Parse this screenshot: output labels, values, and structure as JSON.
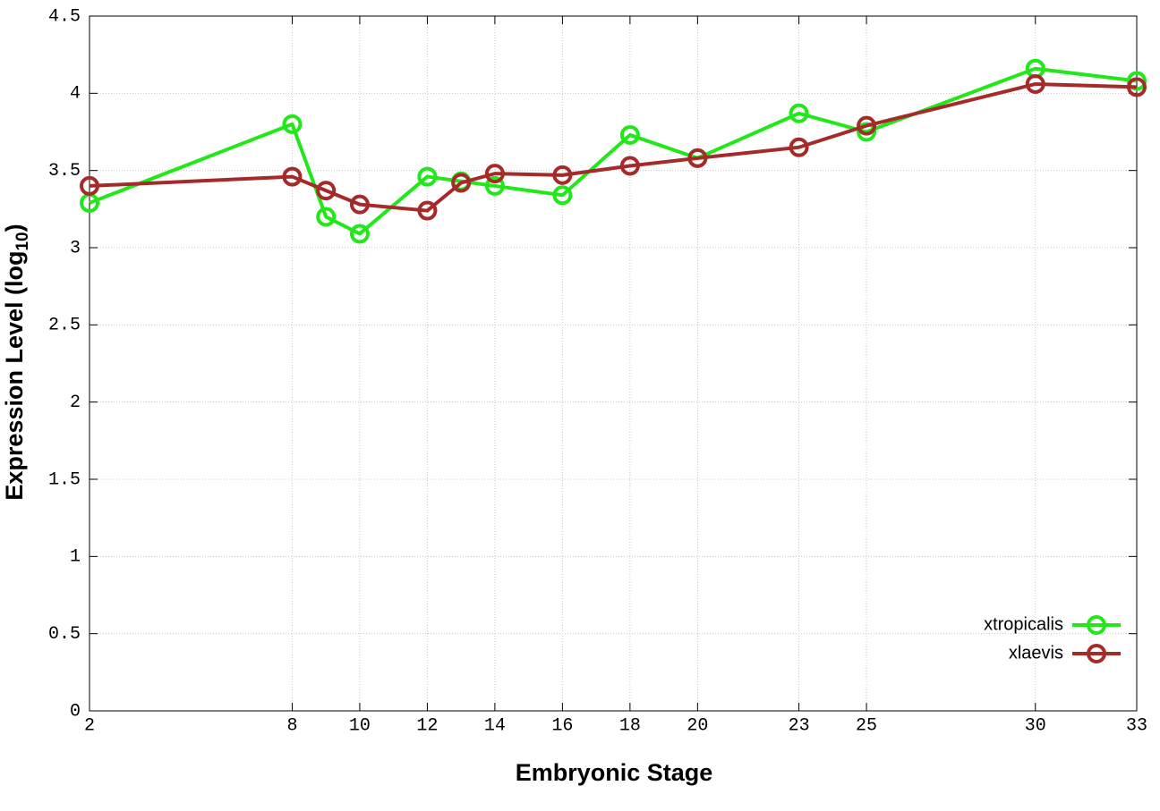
{
  "chart_data": {
    "type": "line",
    "xlabel": "Embryonic Stage",
    "ylabel": [
      "Expression Level (log",
      "10",
      ")"
    ],
    "x": [
      2,
      8,
      9,
      10,
      12,
      13,
      14,
      16,
      18,
      20,
      23,
      25,
      30,
      33
    ],
    "series": [
      {
        "name": "xtropicalis",
        "color": "#22e81a",
        "values": [
          3.29,
          3.8,
          3.2,
          3.09,
          3.46,
          3.43,
          3.4,
          3.34,
          3.73,
          3.58,
          3.87,
          3.75,
          4.16,
          4.08
        ]
      },
      {
        "name": "xlaevis",
        "color": "#a52a2a",
        "values": [
          3.4,
          3.46,
          3.37,
          3.28,
          3.24,
          3.42,
          3.48,
          3.47,
          3.53,
          3.58,
          3.65,
          3.79,
          4.06,
          4.04
        ]
      }
    ],
    "xlim": [
      2,
      33
    ],
    "xticks": [
      2,
      8,
      10,
      12,
      14,
      16,
      18,
      20,
      23,
      25,
      30,
      33
    ],
    "ylim": [
      0,
      4.5
    ],
    "yticks": [
      0,
      0.5,
      1,
      1.5,
      2,
      2.5,
      3,
      3.5,
      4,
      4.5
    ],
    "grid": true,
    "legend": "lower right"
  }
}
